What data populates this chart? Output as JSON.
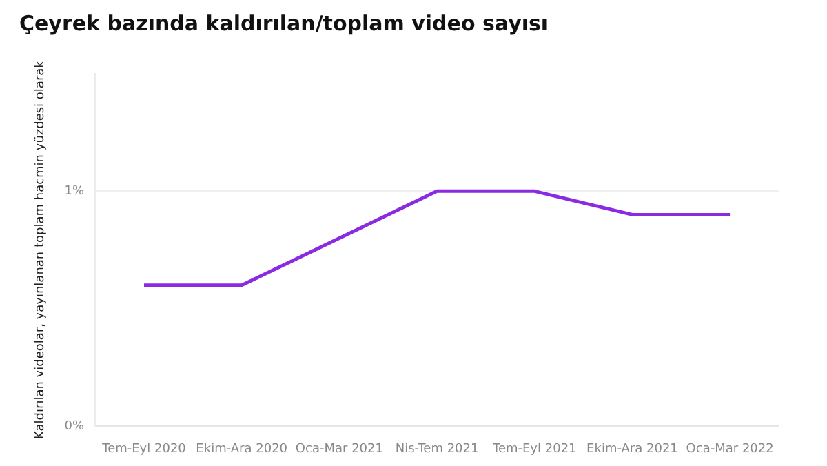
{
  "chart_data": {
    "type": "line",
    "title": "Çeyrek bazında kaldırılan/toplam video sayısı",
    "ylabel": "Kaldırılan videolar, yayınlanan toplam hacmin yüzdesi olarak",
    "categories": [
      "Tem-Eyl 2020",
      "Ekim-Ara 2020",
      "Oca-Mar 2021",
      "Nis-Tem 2021",
      "Tem-Eyl 2021",
      "Ekim-Ara 2021",
      "Oca-Mar 2022"
    ],
    "series": [
      {
        "color": "#8a2be2",
        "values": [
          0.6,
          0.6,
          0.8,
          1.0,
          1.0,
          0.9,
          0.9
        ]
      }
    ],
    "ylim": [
      0,
      1.5
    ],
    "yticks": [
      {
        "value": 0,
        "label": "0%"
      },
      {
        "value": 1,
        "label": "1%"
      }
    ],
    "grid": "y",
    "marker": "none",
    "line_style": "solid"
  }
}
